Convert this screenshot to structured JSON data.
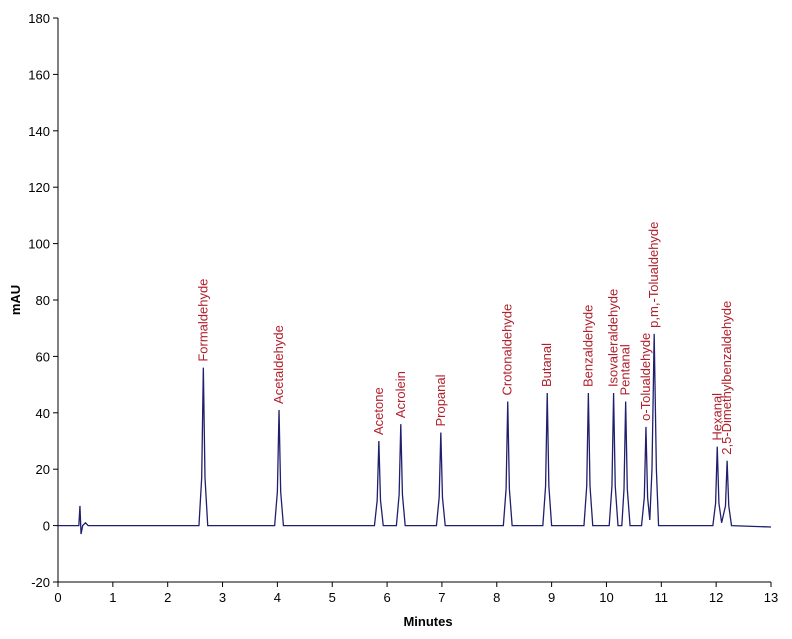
{
  "chart_data": {
    "type": "line",
    "xlabel": "Minutes",
    "ylabel": "mAU",
    "xlim": [
      0,
      13
    ],
    "ylim": [
      -20,
      180
    ],
    "xticks": [
      0,
      1,
      2,
      3,
      4,
      5,
      6,
      7,
      8,
      9,
      10,
      11,
      12,
      13
    ],
    "yticks": [
      -20,
      0,
      20,
      40,
      60,
      80,
      100,
      120,
      140,
      160,
      180
    ],
    "x": [
      0,
      0.38,
      0.4,
      0.42,
      0.45,
      0.5,
      0.55,
      2.57,
      2.62,
      2.65,
      2.68,
      2.73,
      3.95,
      4.0,
      4.03,
      4.06,
      4.11,
      5.77,
      5.82,
      5.85,
      5.88,
      5.93,
      6.17,
      6.22,
      6.25,
      6.28,
      6.33,
      6.9,
      6.95,
      6.98,
      7.01,
      7.06,
      8.12,
      8.17,
      8.2,
      8.23,
      8.28,
      8.84,
      8.89,
      8.92,
      8.95,
      9.0,
      9.59,
      9.64,
      9.67,
      9.7,
      9.75,
      10.05,
      10.1,
      10.13,
      10.16,
      10.21,
      10.28,
      10.32,
      10.35,
      10.38,
      10.43,
      10.64,
      10.69,
      10.72,
      10.75,
      10.79,
      10.83,
      10.87,
      10.91,
      10.95,
      11.94,
      11.99,
      12.02,
      12.05,
      12.1,
      12.17,
      12.2,
      12.23,
      12.28,
      13
    ],
    "series": [
      {
        "color": "#1f1f6e",
        "values": [
          0,
          0,
          7,
          -3,
          0,
          1,
          0,
          0,
          17,
          56,
          17,
          0,
          0,
          12,
          41,
          12,
          0,
          0,
          9,
          30,
          9,
          0,
          0,
          11,
          36,
          11,
          0,
          0,
          10,
          33,
          10,
          0,
          0,
          13,
          44,
          13,
          0,
          0,
          14,
          47,
          14,
          0,
          0,
          14,
          47,
          14,
          0,
          0,
          14,
          47,
          14,
          0,
          0,
          13,
          44,
          13,
          0,
          0,
          10,
          35,
          10,
          2,
          20,
          68,
          20,
          0,
          0,
          8,
          28,
          8,
          1,
          7,
          23,
          7,
          0,
          -0.5
        ]
      }
    ],
    "annotation_color": "#b0202c",
    "annotations": [
      {
        "text": "Formaldehyde",
        "x": 2.65
      },
      {
        "text": "Acetaldehyde",
        "x": 4.03
      },
      {
        "text": "Acetone",
        "x": 5.85
      },
      {
        "text": "Acrolein",
        "x": 6.25
      },
      {
        "text": "Propanal",
        "x": 6.98
      },
      {
        "text": "Crotonaldehyde",
        "x": 8.2
      },
      {
        "text": "Butanal",
        "x": 8.92
      },
      {
        "text": "Benzaldehyde",
        "x": 9.67
      },
      {
        "text": "Isovaleraldehyde",
        "x": 10.13
      },
      {
        "text": "Pentanal",
        "x": 10.35
      },
      {
        "text": "o-Tolualdehyde",
        "x": 10.72
      },
      {
        "text": "p,m,-Tolualdehyde",
        "x": 10.87
      },
      {
        "text": "Hexanal",
        "x": 12.02
      },
      {
        "text": "2,5-Dimethylbenzaldehyde",
        "x": 12.2
      }
    ]
  }
}
